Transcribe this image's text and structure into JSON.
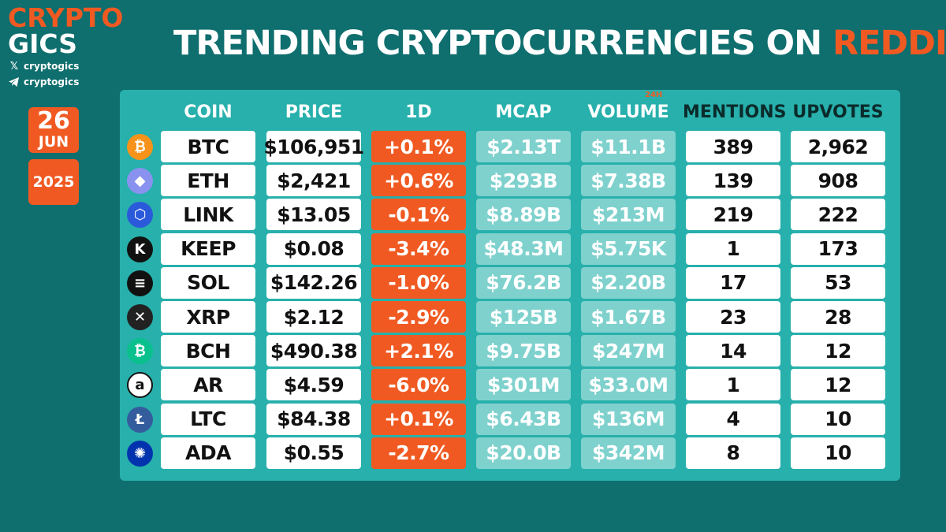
{
  "brand": {
    "line1": "CRYPTO",
    "line2": "GICS",
    "x_handle": "cryptogics",
    "telegram_handle": "cryptogics",
    "x_icon": "x-logo-icon",
    "telegram_icon": "telegram-icon"
  },
  "date": {
    "day": "26",
    "month": "JUN",
    "year": "2025"
  },
  "title": {
    "main": "TRENDING CRYPTOCURRENCIES ON ",
    "accent": "REDDIT"
  },
  "headers": {
    "coin": "COIN",
    "price": "PRICE",
    "change": "1D",
    "mcap": "MCAP",
    "volume": "VOLUME",
    "volume_sub": "24H",
    "mentions": "MENTIONS",
    "upvotes": "UPVOTES"
  },
  "colors": {
    "background": "#0f6e6e",
    "panel": "#27b0ac",
    "accent": "#f05a22",
    "light_teal": "#7fd1cd"
  },
  "rows": [
    {
      "coin": "BTC",
      "price": "$106,951",
      "change": "+0.1%",
      "mcap": "$2.13T",
      "volume": "$11.1B",
      "mentions": "389",
      "upvotes": "2,962",
      "icon": "bitcoin-icon",
      "icon_glyph": "₿",
      "icon_color": "#f7931a"
    },
    {
      "coin": "ETH",
      "price": "$2,421",
      "change": "+0.6%",
      "mcap": "$293B",
      "volume": "$7.38B",
      "mentions": "139",
      "upvotes": "908",
      "icon": "ethereum-icon",
      "icon_glyph": "◆",
      "icon_color": "#8a92f0"
    },
    {
      "coin": "LINK",
      "price": "$13.05",
      "change": "-0.1%",
      "mcap": "$8.89B",
      "volume": "$213M",
      "mentions": "219",
      "upvotes": "222",
      "icon": "chainlink-icon",
      "icon_glyph": "⬡",
      "icon_color": "#2a5ada"
    },
    {
      "coin": "KEEP",
      "price": "$0.08",
      "change": "-3.4%",
      "mcap": "$48.3M",
      "volume": "$5.75K",
      "mentions": "1",
      "upvotes": "173",
      "icon": "keep-icon",
      "icon_glyph": "K",
      "icon_color": "#111111"
    },
    {
      "coin": "SOL",
      "price": "$142.26",
      "change": "-1.0%",
      "mcap": "$76.2B",
      "volume": "$2.20B",
      "mentions": "17",
      "upvotes": "53",
      "icon": "solana-icon",
      "icon_glyph": "≡",
      "icon_color": "#111111"
    },
    {
      "coin": "XRP",
      "price": "$2.12",
      "change": "-2.9%",
      "mcap": "$125B",
      "volume": "$1.67B",
      "mentions": "23",
      "upvotes": "28",
      "icon": "xrp-icon",
      "icon_glyph": "✕",
      "icon_color": "#222222"
    },
    {
      "coin": "BCH",
      "price": "$490.38",
      "change": "+2.1%",
      "mcap": "$9.75B",
      "volume": "$247M",
      "mentions": "14",
      "upvotes": "12",
      "icon": "bitcoin-cash-icon",
      "icon_glyph": "₿",
      "icon_color": "#0ac18e"
    },
    {
      "coin": "AR",
      "price": "$4.59",
      "change": "-6.0%",
      "mcap": "$301M",
      "volume": "$33.0M",
      "mentions": "1",
      "upvotes": "12",
      "icon": "arweave-icon",
      "icon_glyph": "a",
      "icon_color": "#ffffff"
    },
    {
      "coin": "LTC",
      "price": "$84.38",
      "change": "+0.1%",
      "mcap": "$6.43B",
      "volume": "$136M",
      "mentions": "4",
      "upvotes": "10",
      "icon": "litecoin-icon",
      "icon_glyph": "Ł",
      "icon_color": "#345d9d"
    },
    {
      "coin": "ADA",
      "price": "$0.55",
      "change": "-2.7%",
      "mcap": "$20.0B",
      "volume": "$342M",
      "mentions": "8",
      "upvotes": "10",
      "icon": "cardano-icon",
      "icon_glyph": "✺",
      "icon_color": "#0033ad"
    }
  ]
}
